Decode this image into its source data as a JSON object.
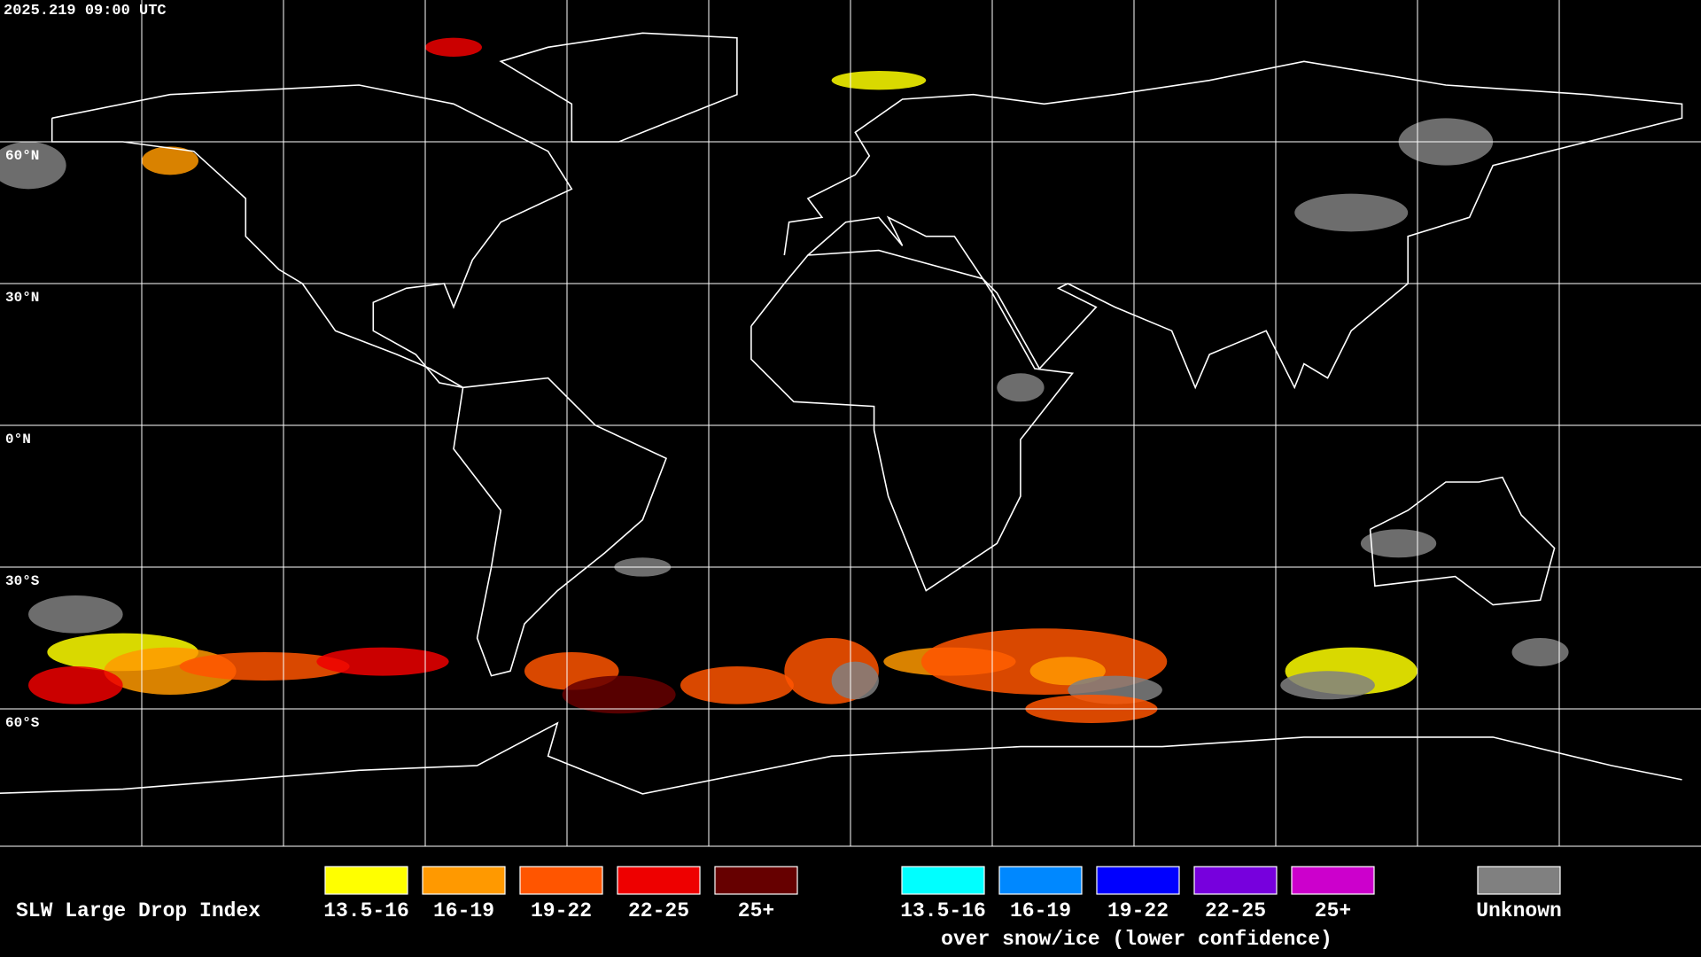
{
  "header": {
    "timestamp": "2025.219 09:00 UTC"
  },
  "map": {
    "latitude_labels": [
      "60°N",
      "30°N",
      "0°N",
      "30°S",
      "60°S"
    ]
  },
  "legend": {
    "title": "SLW Large Drop Index",
    "groups": [
      {
        "items": [
          {
            "label": "13.5-16",
            "color": "#ffff00"
          },
          {
            "label": "16-19",
            "color": "#ff9900"
          },
          {
            "label": "19-22",
            "color": "#ff5500"
          },
          {
            "label": "22-25",
            "color": "#ee0000"
          },
          {
            "label": "25+",
            "color": "#660000"
          }
        ]
      },
      {
        "items": [
          {
            "label": "13.5-16",
            "color": "#00ffff"
          },
          {
            "label": "16-19",
            "color": "#0088ff"
          },
          {
            "label": "19-22",
            "color": "#0000ff"
          },
          {
            "label": "22-25",
            "color": "#7700dd"
          },
          {
            "label": "25+",
            "color": "#cc00cc"
          }
        ],
        "caption": "over snow/ice (lower confidence)"
      }
    ],
    "unknown": {
      "label": "Unknown",
      "color": "#808080"
    }
  }
}
